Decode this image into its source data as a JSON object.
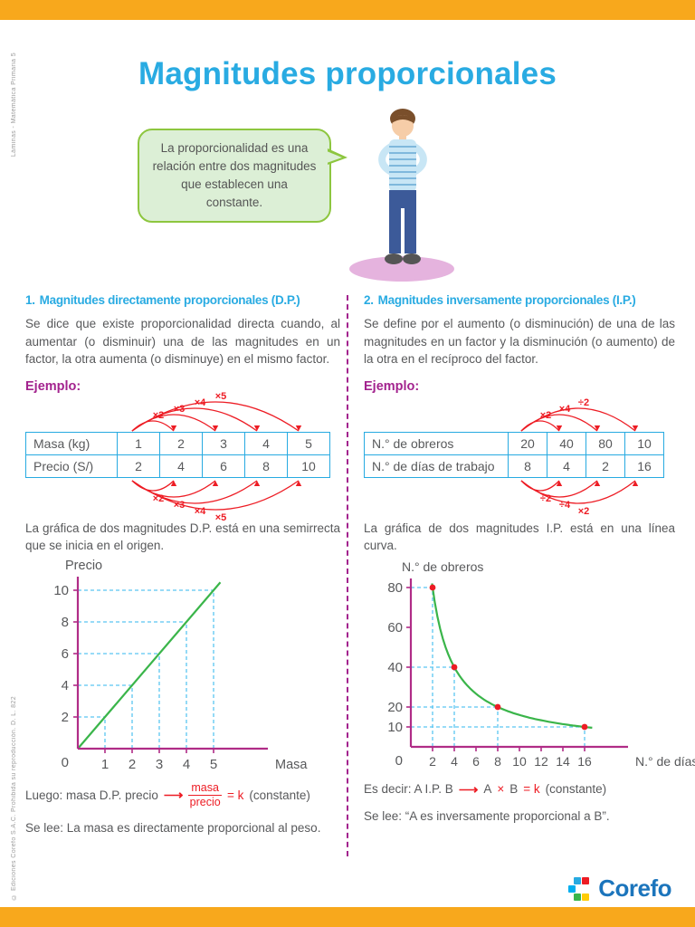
{
  "page": {
    "title": "Magnitudes proporcionales",
    "side_label_top": "Láminas - Matemática Primaria 5",
    "side_label_bottom": "© Ediciones Corefo S.A.C. Prohibida su reproducción. D. L. 822",
    "logo_text": "Corefo"
  },
  "intro": {
    "bubble_text": "La proporcionalidad es una relación entre dos magnitudes que establecen una constante."
  },
  "sections": {
    "left": {
      "number": "1.",
      "title": "Magnitudes directamente proporcionales (D.P.)",
      "body": "Se dice que existe proporcionalidad directa cuando, al aumentar (o disminuir) una de las magnitudes en un factor, la otra aumenta (o disminuye) en el mismo factor.",
      "example_label": "Ejemplo:",
      "graph_note": "La gráfica de dos magnitudes D.P. está en una semirrecta que se inicia en el origen.",
      "conclusion": {
        "prefix": "Luego: masa D.P. precio",
        "arrow": "⟶",
        "fraction_top": "masa",
        "fraction_bottom": "precio",
        "equals": "= k",
        "suffix": "(constante)"
      },
      "reading": "Se lee: La masa es directamente proporcional al peso."
    },
    "right": {
      "number": "2.",
      "title": "Magnitudes inversamente proporcionales (I.P.)",
      "body": "Se define por el aumento (o disminución) de una de las magnitudes en un factor y la disminución (o aumento) de la otra en el recíproco del factor.",
      "example_label": "Ejemplo:",
      "graph_note": "La gráfica de dos magnitudes I.P. está en una línea curva.",
      "conclusion": {
        "prefix": "Es decir: A I.P. B",
        "arrow": "⟶",
        "a": "A",
        "times": "×",
        "b": "B",
        "equals": "= k",
        "suffix": "(constante)"
      },
      "reading": "Se lee: “A es inversamente proporcional a B”."
    }
  },
  "tables": {
    "direct": {
      "rows": [
        {
          "label": "Masa (kg)",
          "values": [
            "1",
            "2",
            "3",
            "4",
            "5"
          ]
        },
        {
          "label": "Precio (S/)",
          "values": [
            "2",
            "4",
            "6",
            "8",
            "10"
          ]
        }
      ],
      "top_factors": [
        "×2",
        "×3",
        "×4",
        "×5"
      ],
      "bottom_factors": [
        "×2",
        "×3",
        "×4",
        "×5"
      ]
    },
    "inverse": {
      "rows": [
        {
          "label": "N.° de obreros",
          "values": [
            "20",
            "40",
            "80",
            "10"
          ]
        },
        {
          "label": "N.° de días de trabajo",
          "values": [
            "8",
            "4",
            "2",
            "16"
          ]
        }
      ],
      "top_factors": [
        "×2",
        "×4",
        "÷2"
      ],
      "bottom_factors": [
        "÷2",
        "÷4",
        "×2"
      ]
    }
  },
  "chart_data": [
    {
      "type": "line",
      "xlabel": "Masa",
      "ylabel": "Precio",
      "x": [
        1,
        2,
        3,
        4,
        5
      ],
      "y": [
        2,
        4,
        6,
        8,
        10
      ],
      "xticks": [
        1,
        2,
        3,
        4,
        5
      ],
      "yticks": [
        2,
        4,
        6,
        8,
        10
      ],
      "xlim": [
        0,
        6
      ],
      "ylim": [
        0,
        11
      ],
      "origin_label": "0",
      "line_color": "#3AB54A",
      "guide_color": "#5BC5F2",
      "axis_color": "#B02C87"
    },
    {
      "type": "scatter",
      "xlabel": "N.° de días",
      "ylabel": "N.° de obreros",
      "points": [
        [
          2,
          80
        ],
        [
          4,
          40
        ],
        [
          8,
          20
        ],
        [
          16,
          10
        ]
      ],
      "xticks": [
        2,
        4,
        6,
        8,
        10,
        12,
        14,
        16
      ],
      "yticks": [
        10,
        20,
        40,
        60,
        80
      ],
      "xlim": [
        0,
        18
      ],
      "ylim": [
        0,
        90
      ],
      "origin_label": "0",
      "point_color": "#ED1C24",
      "line_color": "#3AB54A",
      "guide_color": "#5BC5F2",
      "axis_color": "#B02C87"
    }
  ]
}
